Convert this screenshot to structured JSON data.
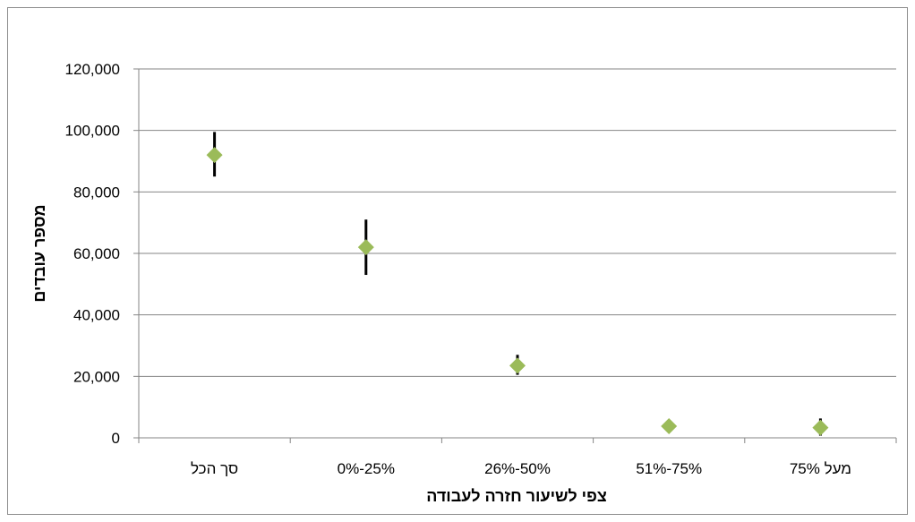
{
  "chart_data": {
    "type": "scatter",
    "title": "",
    "xlabel": "צפי לשיעור חזרה לעבודה",
    "ylabel": "מספר עובדים",
    "categories": [
      "סך הכל",
      "25%-0%",
      "50%-26%",
      "75%-51%",
      "מעל 75%"
    ],
    "values": [
      92000,
      62000,
      23500,
      3800,
      3300
    ],
    "error_low": [
      85000,
      53000,
      20500,
      3000,
      700
    ],
    "error_high": [
      99500,
      71000,
      27000,
      4500,
      6300
    ],
    "ylim": [
      0,
      120000
    ],
    "yticks": [
      0,
      20000,
      40000,
      60000,
      80000,
      100000,
      120000
    ],
    "ytick_labels": [
      "0",
      "20,000",
      "40,000",
      "60,000",
      "80,000",
      "100,000",
      "120,000"
    ],
    "grid": true,
    "legend": "none",
    "marker": "diamond",
    "colors": {
      "marker": "#9bbb59",
      "error_bar": "#000000",
      "grid": "#868686",
      "axis": "#868686"
    }
  }
}
